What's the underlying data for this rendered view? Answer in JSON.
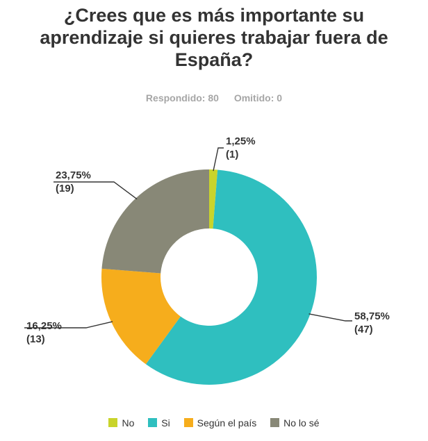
{
  "title_lines": [
    "¿Crees que es más importante su",
    "aprendizaje si quieres trabajar fuera de",
    "España?"
  ],
  "summary": {
    "answered": "Respondido: 80",
    "skipped": "Omitido: 0"
  },
  "chart_data": {
    "type": "pie",
    "style": "donut",
    "title": "¿Crees que es más importante su aprendizaje si quieres trabajar fuera de España?",
    "categories": [
      "No",
      "Si",
      "Según el país",
      "No lo sé"
    ],
    "values": [
      1,
      47,
      13,
      19
    ],
    "percent_labels": [
      "1,25%",
      "58,75%",
      "16,25%",
      "23,75%"
    ],
    "count_labels": [
      "(1)",
      "(47)",
      "(13)",
      "(19)"
    ],
    "colors": [
      "#c9d42b",
      "#2fbfbf",
      "#f6ad1c",
      "#888877"
    ],
    "legend_position": "bottom"
  }
}
